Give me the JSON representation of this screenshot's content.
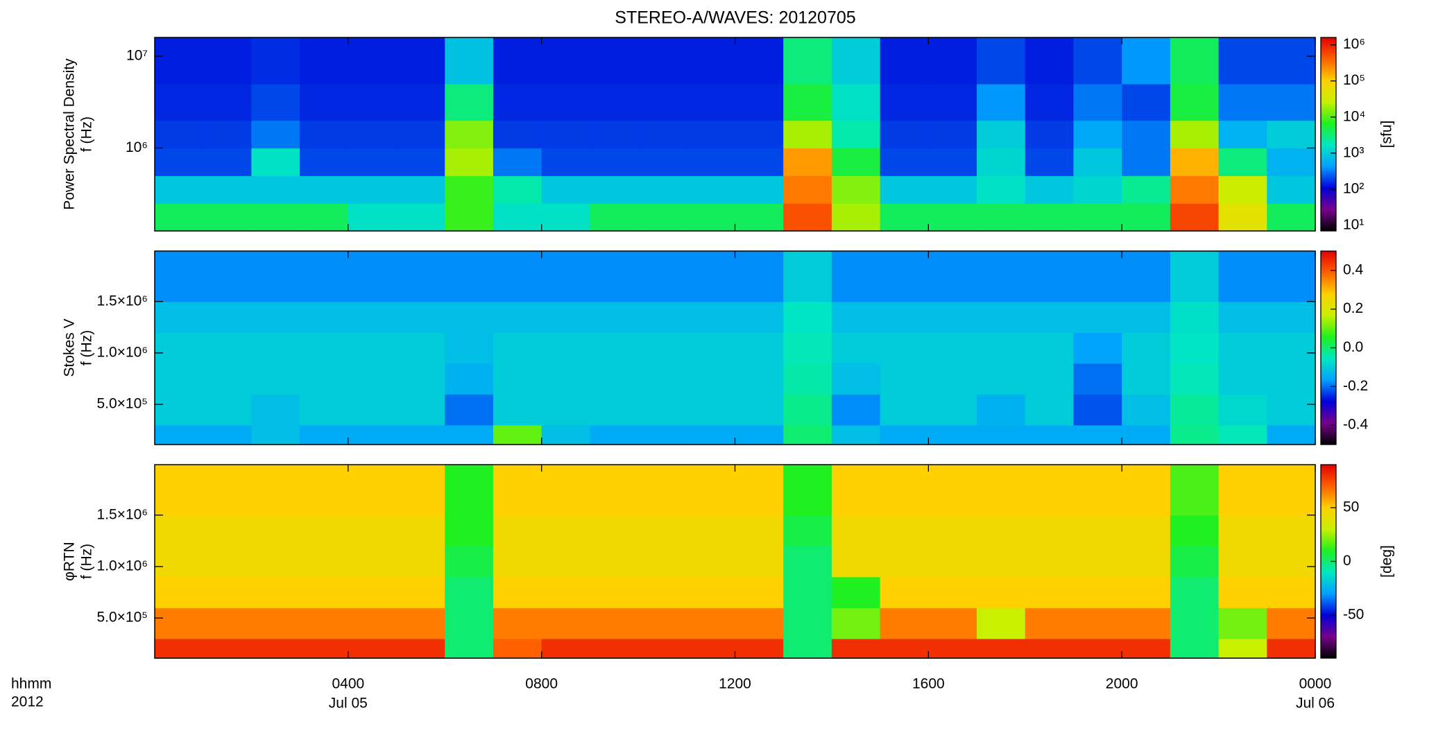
{
  "chart_data": [
    {
      "type": "heatmap",
      "title": "STEREO-A/WAVES: 20120705",
      "ylabel": [
        "Power Spectral Density",
        "f (Hz)"
      ],
      "xlim": [
        0,
        24
      ],
      "x_bins": [
        0,
        1,
        2,
        3,
        4,
        5,
        6,
        7,
        8,
        9,
        10,
        11,
        12,
        13,
        14,
        15,
        16,
        17,
        18,
        19,
        20,
        21,
        22,
        23,
        24
      ],
      "ylog": true,
      "ylim": [
        125000,
        16000000
      ],
      "yticks": [
        {
          "value": 1000000,
          "label": "10⁶"
        },
        {
          "value": 10000000,
          "label": "10⁷"
        }
      ],
      "y_bins": [
        125000,
        250000,
        500000,
        1000000,
        2000000,
        5000000,
        16000000
      ],
      "z": [
        [
          4000,
          4000,
          4000,
          4000,
          1500,
          1500,
          8000,
          1500,
          1500,
          4000,
          4000,
          4000,
          4000,
          500000,
          20000,
          4000,
          4000,
          4000,
          4000,
          4000,
          4000,
          600000,
          50000,
          4000
        ],
        [
          900,
          900,
          900,
          900,
          900,
          900,
          8000,
          2000,
          900,
          900,
          900,
          900,
          900,
          300000,
          15000,
          900,
          900,
          1500,
          900,
          1200,
          2500,
          300000,
          30000,
          900
        ],
        [
          200,
          200,
          1500,
          200,
          200,
          200,
          20000,
          300,
          200,
          200,
          200,
          200,
          200,
          200000,
          5000,
          200,
          200,
          1200,
          200,
          900,
          300,
          150000,
          3000,
          600
        ],
        [
          180,
          180,
          300,
          180,
          180,
          180,
          15000,
          180,
          180,
          180,
          180,
          180,
          180,
          20000,
          2000,
          180,
          180,
          1000,
          180,
          500,
          300,
          20000,
          600,
          1000
        ],
        [
          150,
          150,
          200,
          150,
          150,
          150,
          3000,
          150,
          150,
          150,
          150,
          150,
          150,
          5000,
          1500,
          150,
          150,
          400,
          150,
          300,
          200,
          5000,
          300,
          300
        ],
        [
          140,
          140,
          160,
          140,
          140,
          140,
          800,
          140,
          140,
          140,
          140,
          140,
          140,
          3000,
          1000,
          140,
          140,
          200,
          140,
          200,
          400,
          4000,
          200,
          200
        ]
      ],
      "clog": true,
      "clim": [
        7,
        1600000
      ],
      "cticks": [
        {
          "value": 10,
          "label": "10¹"
        },
        {
          "value": 100,
          "label": "10²"
        },
        {
          "value": 1000,
          "label": "10³"
        },
        {
          "value": 10000,
          "label": "10⁴"
        },
        {
          "value": 100000,
          "label": "10⁵"
        },
        {
          "value": 1000000,
          "label": "10⁶"
        }
      ],
      "clabel": "[sfu]",
      "colormap": [
        "#000000",
        "#78008c",
        "#0000d8",
        "#00a0ff",
        "#00e8c0",
        "#20f020",
        "#c8f000",
        "#ffd000",
        "#ff6000",
        "#e00000"
      ]
    },
    {
      "type": "heatmap",
      "ylabel": [
        "Stokes V",
        "f (Hz)"
      ],
      "xlim": [
        0,
        24
      ],
      "x_bins": [
        0,
        1,
        2,
        3,
        4,
        5,
        6,
        7,
        8,
        9,
        10,
        11,
        12,
        13,
        14,
        15,
        16,
        17,
        18,
        19,
        20,
        21,
        22,
        23,
        24
      ],
      "ylog": false,
      "ylim": [
        110000,
        1990000
      ],
      "yticks": [
        {
          "value": 500000,
          "label": "5.0×10⁵"
        },
        {
          "value": 1000000,
          "label": "1.0×10⁶"
        },
        {
          "value": 1500000,
          "label": "1.5×10⁶"
        }
      ],
      "y_bins": [
        110000,
        300000,
        600000,
        900000,
        1200000,
        1500000,
        1990000
      ],
      "z": [
        [
          -0.15,
          -0.15,
          -0.12,
          -0.15,
          -0.15,
          -0.15,
          -0.15,
          0.1,
          -0.12,
          -0.15,
          -0.15,
          -0.15,
          -0.15,
          0.0,
          -0.12,
          -0.15,
          -0.15,
          -0.15,
          -0.15,
          -0.15,
          -0.15,
          -0.02,
          -0.05,
          -0.15
        ],
        [
          -0.1,
          -0.1,
          -0.12,
          -0.1,
          -0.1,
          -0.1,
          -0.2,
          -0.1,
          -0.1,
          -0.1,
          -0.1,
          -0.1,
          -0.1,
          -0.02,
          -0.18,
          -0.1,
          -0.1,
          -0.14,
          -0.1,
          -0.22,
          -0.12,
          -0.03,
          -0.08,
          -0.1
        ],
        [
          -0.1,
          -0.1,
          -0.1,
          -0.1,
          -0.1,
          -0.1,
          -0.14,
          -0.1,
          -0.1,
          -0.1,
          -0.1,
          -0.1,
          -0.1,
          -0.04,
          -0.12,
          -0.1,
          -0.1,
          -0.1,
          -0.1,
          -0.2,
          -0.1,
          -0.05,
          -0.1,
          -0.1
        ],
        [
          -0.1,
          -0.1,
          -0.1,
          -0.1,
          -0.1,
          -0.1,
          -0.12,
          -0.1,
          -0.1,
          -0.1,
          -0.1,
          -0.1,
          -0.1,
          -0.05,
          -0.1,
          -0.1,
          -0.1,
          -0.1,
          -0.1,
          -0.16,
          -0.1,
          -0.06,
          -0.1,
          -0.1
        ],
        [
          -0.12,
          -0.12,
          -0.12,
          -0.12,
          -0.12,
          -0.12,
          -0.12,
          -0.12,
          -0.12,
          -0.12,
          -0.12,
          -0.12,
          -0.12,
          -0.06,
          -0.12,
          -0.12,
          -0.12,
          -0.12,
          -0.12,
          -0.12,
          -0.12,
          -0.07,
          -0.12,
          -0.12
        ],
        [
          -0.18,
          -0.18,
          -0.18,
          -0.18,
          -0.18,
          -0.18,
          -0.18,
          -0.18,
          -0.18,
          -0.18,
          -0.18,
          -0.18,
          -0.18,
          -0.1,
          -0.18,
          -0.18,
          -0.18,
          -0.18,
          -0.18,
          -0.18,
          -0.18,
          -0.1,
          -0.18,
          -0.18
        ]
      ],
      "clog": false,
      "clim": [
        -0.5,
        0.5
      ],
      "cticks": [
        -0.4,
        -0.2,
        {
          "value": 0,
          "label": "0.0"
        },
        0.2,
        0.4
      ],
      "colormap": [
        "#000000",
        "#78008c",
        "#0000d8",
        "#00a0ff",
        "#00e8c0",
        "#20f020",
        "#c8f000",
        "#ffd000",
        "#ff6000",
        "#e00000"
      ]
    },
    {
      "type": "heatmap",
      "ylabel": [
        "φRTN",
        "f (Hz)"
      ],
      "xlim": [
        0,
        24
      ],
      "x_bins": [
        0,
        1,
        2,
        3,
        4,
        5,
        6,
        7,
        8,
        9,
        10,
        11,
        12,
        13,
        14,
        15,
        16,
        17,
        18,
        19,
        20,
        21,
        22,
        23,
        24
      ],
      "xticks": [
        {
          "value": 4,
          "label": "0400"
        },
        {
          "value": 8,
          "label": "0800"
        },
        {
          "value": 12,
          "label": "1200"
        },
        {
          "value": 16,
          "label": "1600"
        },
        {
          "value": 20,
          "label": "2000"
        },
        {
          "value": 24,
          "label": "0000"
        }
      ],
      "xtick_dates": [
        {
          "value": 4,
          "label": "Jul 05"
        },
        {
          "value": 24,
          "label": "Jul 06"
        }
      ],
      "xlabel": [
        "hhmm",
        "2012"
      ],
      "ylog": false,
      "ylim": [
        110000,
        1990000
      ],
      "yticks": [
        {
          "value": 500000,
          "label": "5.0×10⁵"
        },
        {
          "value": 1000000,
          "label": "1.0×10⁶"
        },
        {
          "value": 1500000,
          "label": "1.5×10⁶"
        }
      ],
      "y_bins": [
        110000,
        300000,
        600000,
        900000,
        1200000,
        1500000,
        1990000
      ],
      "z": [
        [
          80,
          80,
          80,
          80,
          80,
          80,
          0,
          70,
          80,
          80,
          80,
          80,
          80,
          0,
          80,
          80,
          80,
          80,
          80,
          80,
          80,
          0,
          30,
          80
        ],
        [
          65,
          65,
          65,
          65,
          65,
          65,
          0,
          65,
          65,
          65,
          65,
          65,
          65,
          0,
          20,
          65,
          65,
          30,
          65,
          65,
          65,
          0,
          20,
          65
        ],
        [
          50,
          50,
          50,
          50,
          50,
          50,
          0,
          50,
          50,
          50,
          50,
          50,
          50,
          0,
          10,
          50,
          50,
          50,
          50,
          50,
          50,
          0,
          50,
          50
        ],
        [
          45,
          45,
          45,
          45,
          45,
          45,
          5,
          45,
          45,
          45,
          45,
          45,
          45,
          0,
          45,
          45,
          45,
          45,
          45,
          45,
          45,
          5,
          45,
          45
        ],
        [
          45,
          45,
          45,
          45,
          45,
          45,
          10,
          45,
          45,
          45,
          45,
          45,
          45,
          5,
          45,
          45,
          45,
          45,
          45,
          45,
          45,
          10,
          45,
          45
        ],
        [
          50,
          50,
          50,
          50,
          50,
          50,
          10,
          50,
          50,
          50,
          50,
          50,
          50,
          10,
          50,
          50,
          50,
          50,
          50,
          50,
          50,
          15,
          50,
          50
        ]
      ],
      "clog": false,
      "clim": [
        -90,
        90
      ],
      "cticks": [
        -50,
        0,
        50
      ],
      "clabel": "[deg]",
      "colormap": [
        "#000000",
        "#78008c",
        "#0000d8",
        "#00a0ff",
        "#00e8c0",
        "#20f020",
        "#c8f000",
        "#ffd000",
        "#ff6000",
        "#e00000"
      ]
    }
  ]
}
